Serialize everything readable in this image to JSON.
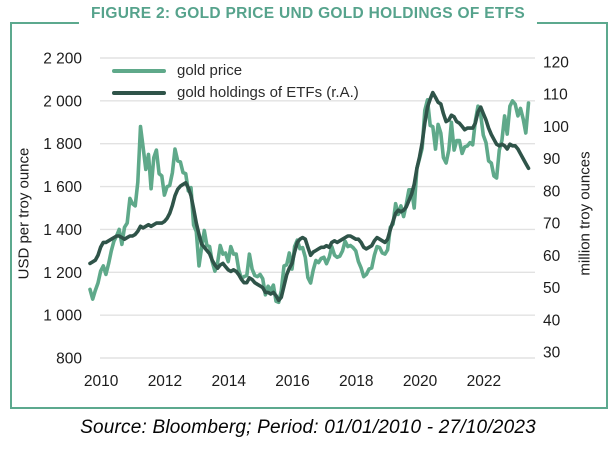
{
  "figure": {
    "title": "FIGURE 2: GOLD PRICE UND GOLD HOLDINGS OF ETFS",
    "title_color": "#56A38C",
    "frame_color": "#5CA98E",
    "source": "Source: Bloomberg; Period: 01/01/2010 - 27/10/2023"
  },
  "legend": {
    "items": [
      {
        "label": "gold price",
        "color": "#5FA98A"
      },
      {
        "label": "gold holdings of ETFs (r.A.)",
        "color": "#2F5449"
      }
    ]
  },
  "chart_data": {
    "type": "line",
    "title": "FIGURE 2: GOLD PRICE UND GOLD HOLDINGS OF ETFS",
    "frequency": "monthly",
    "x_start": "2010-01",
    "x_end": "2023-10",
    "x_tick_labels": [
      "2010",
      "2012",
      "2014",
      "2016",
      "2018",
      "2020",
      "2022"
    ],
    "grid_color": "#E2E2E2",
    "left_axis": {
      "label": "USD per troy ounce",
      "min": 800,
      "max": 2200,
      "tick_values": [
        2200,
        2000,
        1800,
        1600,
        1400,
        1200,
        1000,
        800
      ],
      "tick_labels": [
        "2 200",
        "2 000",
        "1 800",
        "1 600",
        "1 400",
        "1 200",
        "1 000",
        "800"
      ]
    },
    "right_axis": {
      "label": "million troy ounces",
      "min": 30,
      "max": 120,
      "tick_values": [
        120,
        110,
        100,
        90,
        80,
        70,
        60,
        50,
        40,
        30
      ],
      "tick_labels": [
        "120",
        "110",
        "100",
        "90",
        "80",
        "70",
        "60",
        "50",
        "40",
        "30"
      ]
    },
    "series": [
      {
        "name": "gold price",
        "axis": "left",
        "color": "#5FA98A",
        "values": [
          1120,
          1075,
          1115,
          1150,
          1205,
          1230,
          1190,
          1240,
          1300,
          1345,
          1370,
          1400,
          1330,
          1410,
          1430,
          1545,
          1520,
          1510,
          1620,
          1880,
          1780,
          1680,
          1750,
          1590,
          1735,
          1770,
          1660,
          1650,
          1560,
          1600,
          1605,
          1665,
          1775,
          1720,
          1715,
          1665,
          1660,
          1580,
          1595,
          1420,
          1390,
          1230,
          1315,
          1395,
          1325,
          1320,
          1250,
          1205,
          1245,
          1325,
          1285,
          1290,
          1250,
          1320,
          1285,
          1285,
          1210,
          1170,
          1180,
          1185,
          1285,
          1215,
          1185,
          1180,
          1190,
          1170,
          1095,
          1135,
          1115,
          1140,
          1065,
          1060,
          1115,
          1230,
          1235,
          1290,
          1215,
          1320,
          1350,
          1310,
          1315,
          1270,
          1175,
          1150,
          1210,
          1255,
          1245,
          1265,
          1270,
          1240,
          1270,
          1320,
          1280,
          1270,
          1275,
          1300,
          1345,
          1320,
          1325,
          1315,
          1300,
          1250,
          1220,
          1180,
          1190,
          1215,
          1220,
          1280,
          1320,
          1315,
          1290,
          1285,
          1305,
          1410,
          1425,
          1520,
          1470,
          1510,
          1460,
          1515,
          1585,
          1585,
          1500,
          1685,
          1730,
          1780,
          1955,
          2005,
          1885,
          1880,
          1775,
          1890,
          1850,
          1735,
          1710,
          1770,
          1900,
          1770,
          1815,
          1815,
          1755,
          1785,
          1790,
          1805,
          1795,
          1905,
          1975,
          1935,
          1840,
          1805,
          1720,
          1710,
          1650,
          1640,
          1770,
          1815,
          1930,
          1845,
          1975,
          2000,
          1985,
          1930,
          1965,
          1915,
          1850,
          1990
        ]
      },
      {
        "name": "gold holdings of ETFs (r.A.)",
        "axis": "right",
        "color": "#2F5449",
        "values": [
          57.5,
          58,
          58.5,
          60,
          62.5,
          64,
          64,
          64.5,
          65,
          65.5,
          66,
          66,
          65.5,
          65,
          65.5,
          66,
          66,
          66.5,
          67.5,
          69,
          68.5,
          69,
          69.5,
          69,
          69.5,
          70,
          70,
          70,
          70.5,
          71.5,
          73,
          75.5,
          78.5,
          80.5,
          81.5,
          82,
          82.5,
          81,
          78.5,
          74.5,
          70,
          66.5,
          63.5,
          62.5,
          61.5,
          60.5,
          58.5,
          57,
          56,
          57,
          57.5,
          56.5,
          55.5,
          55,
          55.5,
          55,
          54,
          52.5,
          51.5,
          51.5,
          53,
          52.5,
          51.5,
          51,
          50.5,
          50,
          48.5,
          48.5,
          48,
          48.5,
          47.5,
          46,
          47,
          50.5,
          54,
          56,
          57.5,
          61,
          64,
          65,
          65.5,
          65,
          62.5,
          60,
          61,
          61.5,
          62,
          62.5,
          62.5,
          63,
          62.5,
          64,
          64.5,
          64,
          64.5,
          65,
          65.5,
          66,
          66,
          65.5,
          65,
          65,
          64,
          62.5,
          62,
          62.5,
          63,
          64.5,
          65.5,
          65,
          64.5,
          64,
          65,
          68,
          70.5,
          73,
          74,
          73.5,
          74,
          75,
          77,
          79,
          82,
          87,
          90.5,
          95,
          101,
          106,
          108.5,
          110.5,
          109,
          107.5,
          107,
          104,
          101.5,
          102,
          103.5,
          103,
          101.5,
          101,
          100,
          99,
          99.5,
          99.5,
          99.5,
          101,
          104.5,
          106,
          104,
          102,
          99.5,
          97.5,
          96,
          94.5,
          94,
          94.5,
          94,
          93,
          94.5,
          94,
          94,
          93,
          91.5,
          90,
          88.5,
          87
        ]
      }
    ]
  }
}
